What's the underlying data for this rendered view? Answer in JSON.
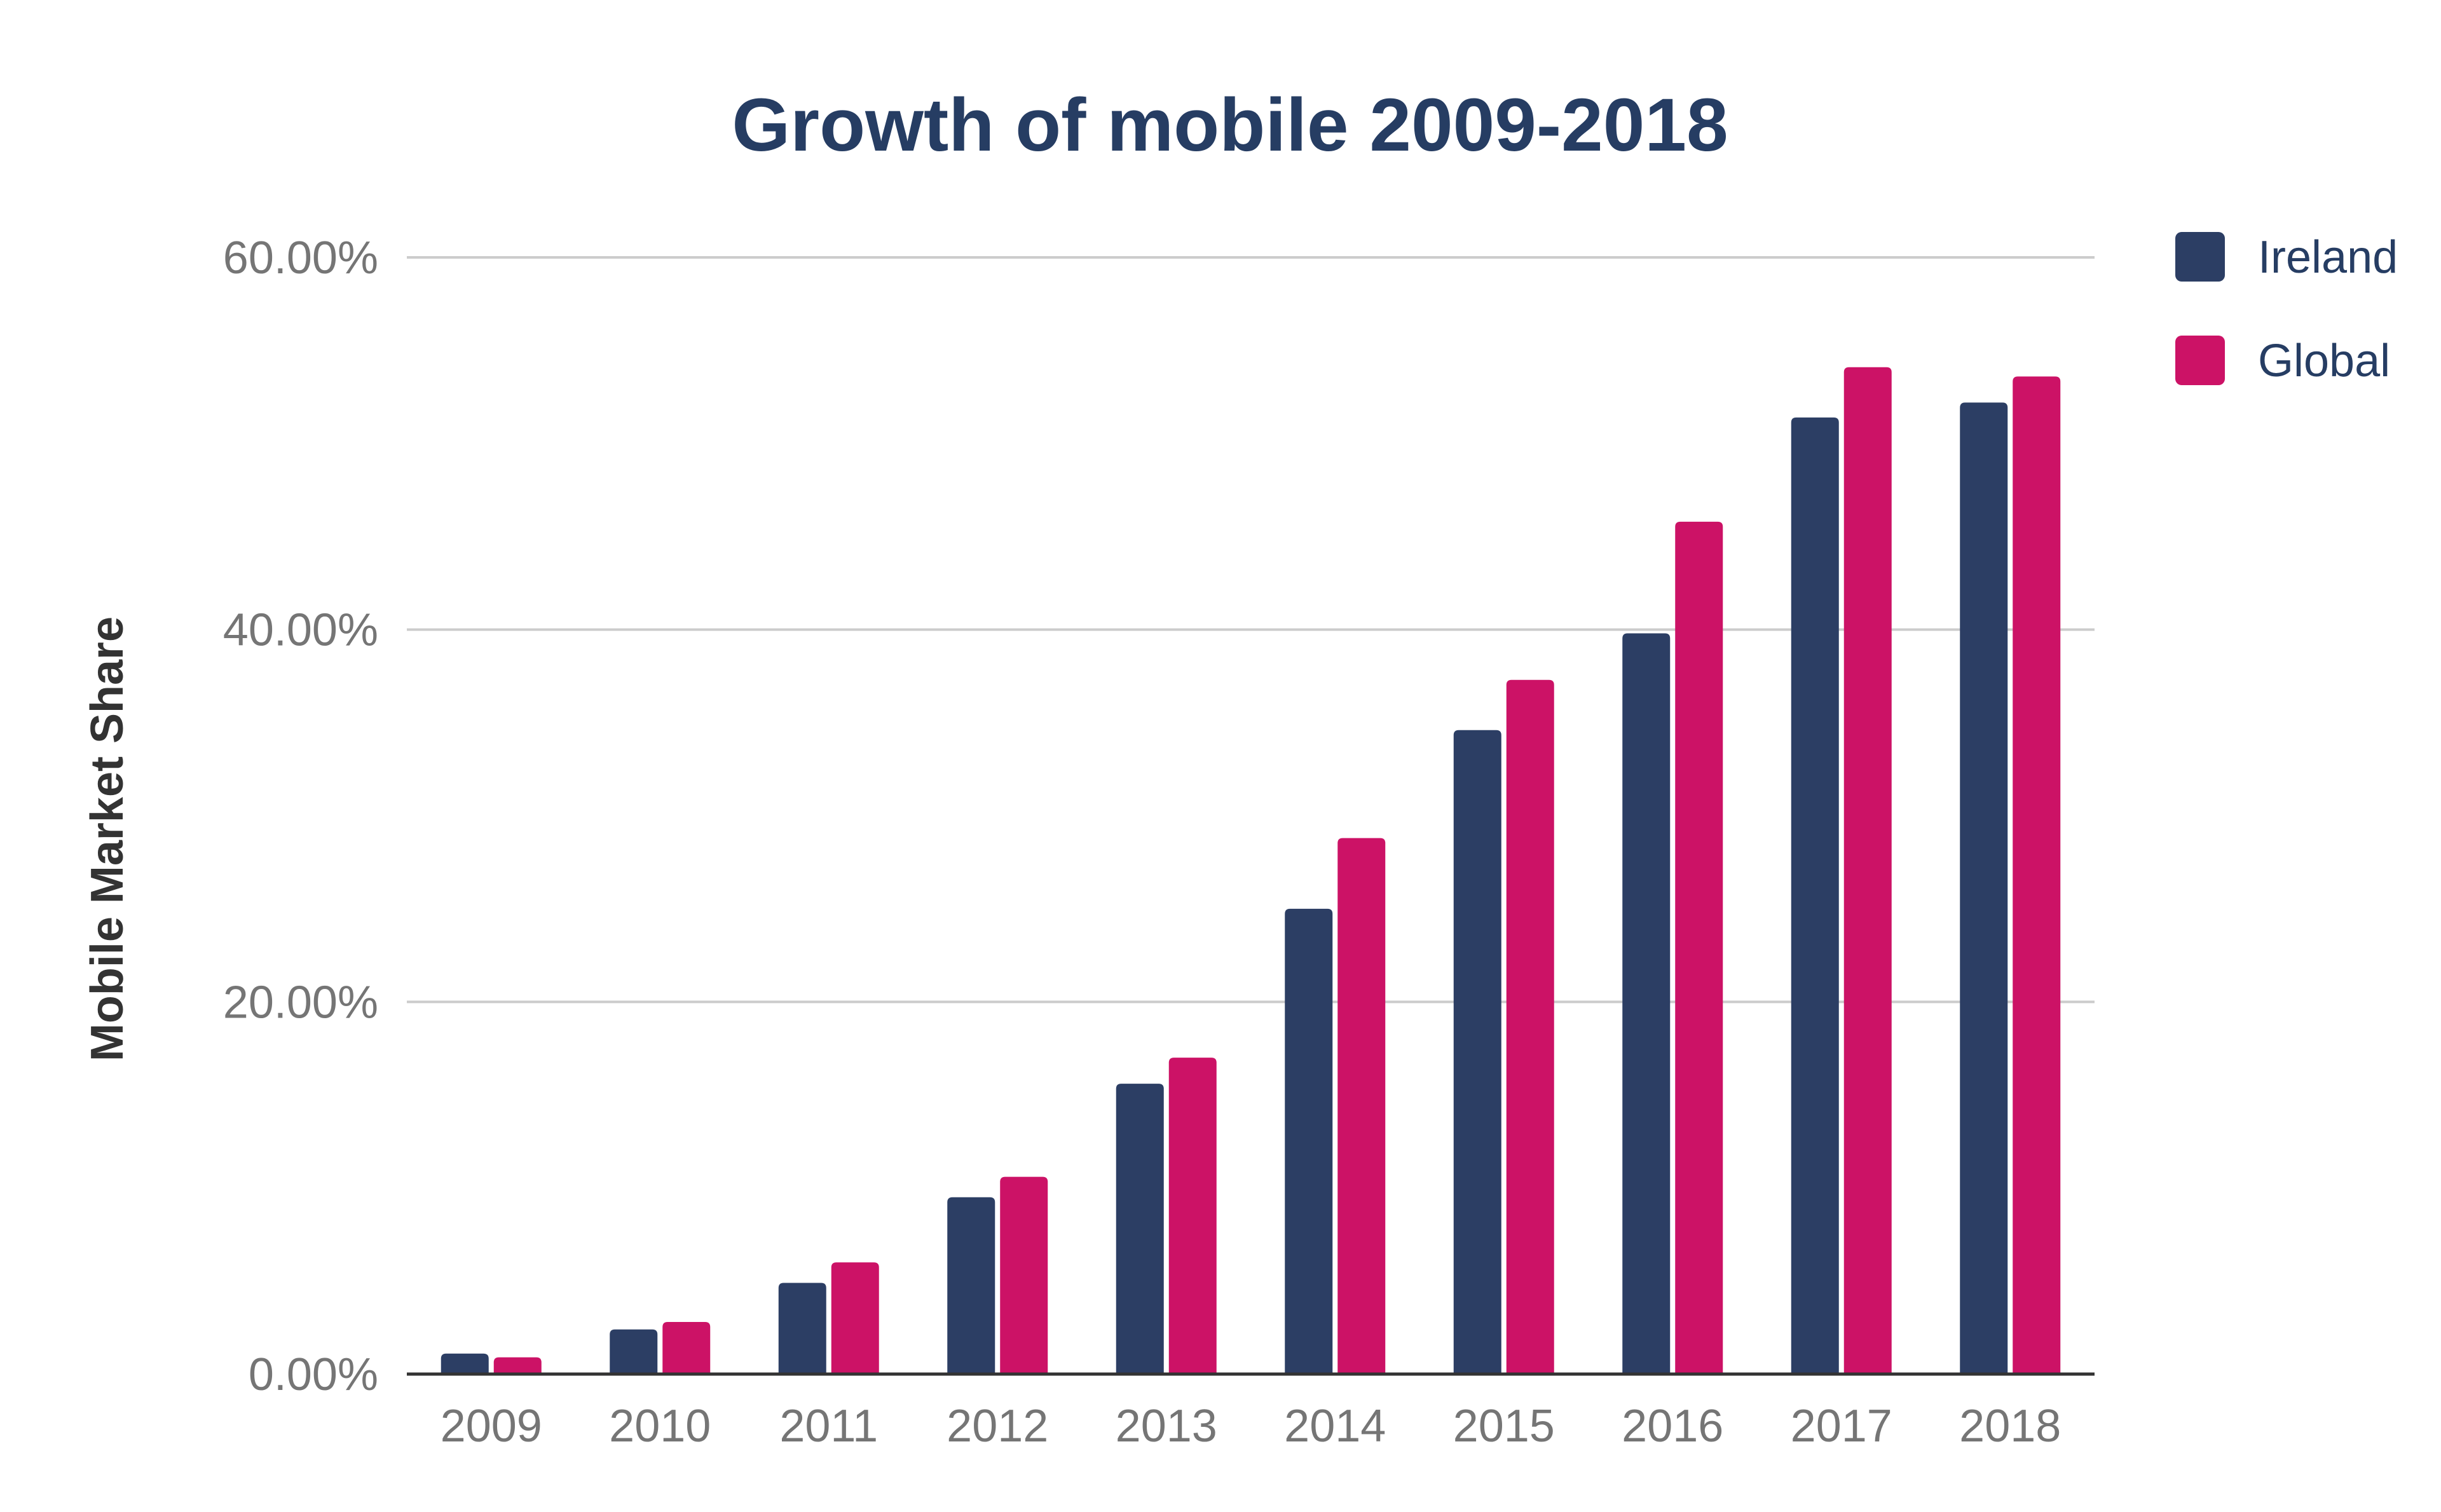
{
  "chart_data": {
    "type": "bar",
    "title": "Growth of mobile 2009-2018",
    "xlabel": "",
    "ylabel": "Mobile Market Share",
    "categories": [
      "2009",
      "2010",
      "2011",
      "2012",
      "2013",
      "2014",
      "2015",
      "2016",
      "2017",
      "2018"
    ],
    "series": [
      {
        "name": "Ireland",
        "color": "#2c3e64",
        "values": [
          1.1,
          2.4,
          4.9,
          9.5,
          15.6,
          25.0,
          34.6,
          39.8,
          51.4,
          52.2
        ]
      },
      {
        "name": "Global",
        "color": "#cc1266",
        "values": [
          0.9,
          2.8,
          6.0,
          10.6,
          17.0,
          28.8,
          37.3,
          45.8,
          54.1,
          53.6
        ]
      }
    ],
    "ylim": [
      0,
      60
    ],
    "yticks": [
      {
        "value": 0,
        "label": "0.00%"
      },
      {
        "value": 20,
        "label": "20.00%"
      },
      {
        "value": 40,
        "label": "40.00%"
      },
      {
        "value": 60,
        "label": "60.00%"
      }
    ],
    "grid": true,
    "legend_position": "top-right"
  },
  "colors": {
    "title": "#263d63",
    "tick_text": "#757575",
    "axis_title": "#333333",
    "legend_text": "#263d63",
    "gridline": "#cccccc",
    "baseline": "#333333"
  }
}
